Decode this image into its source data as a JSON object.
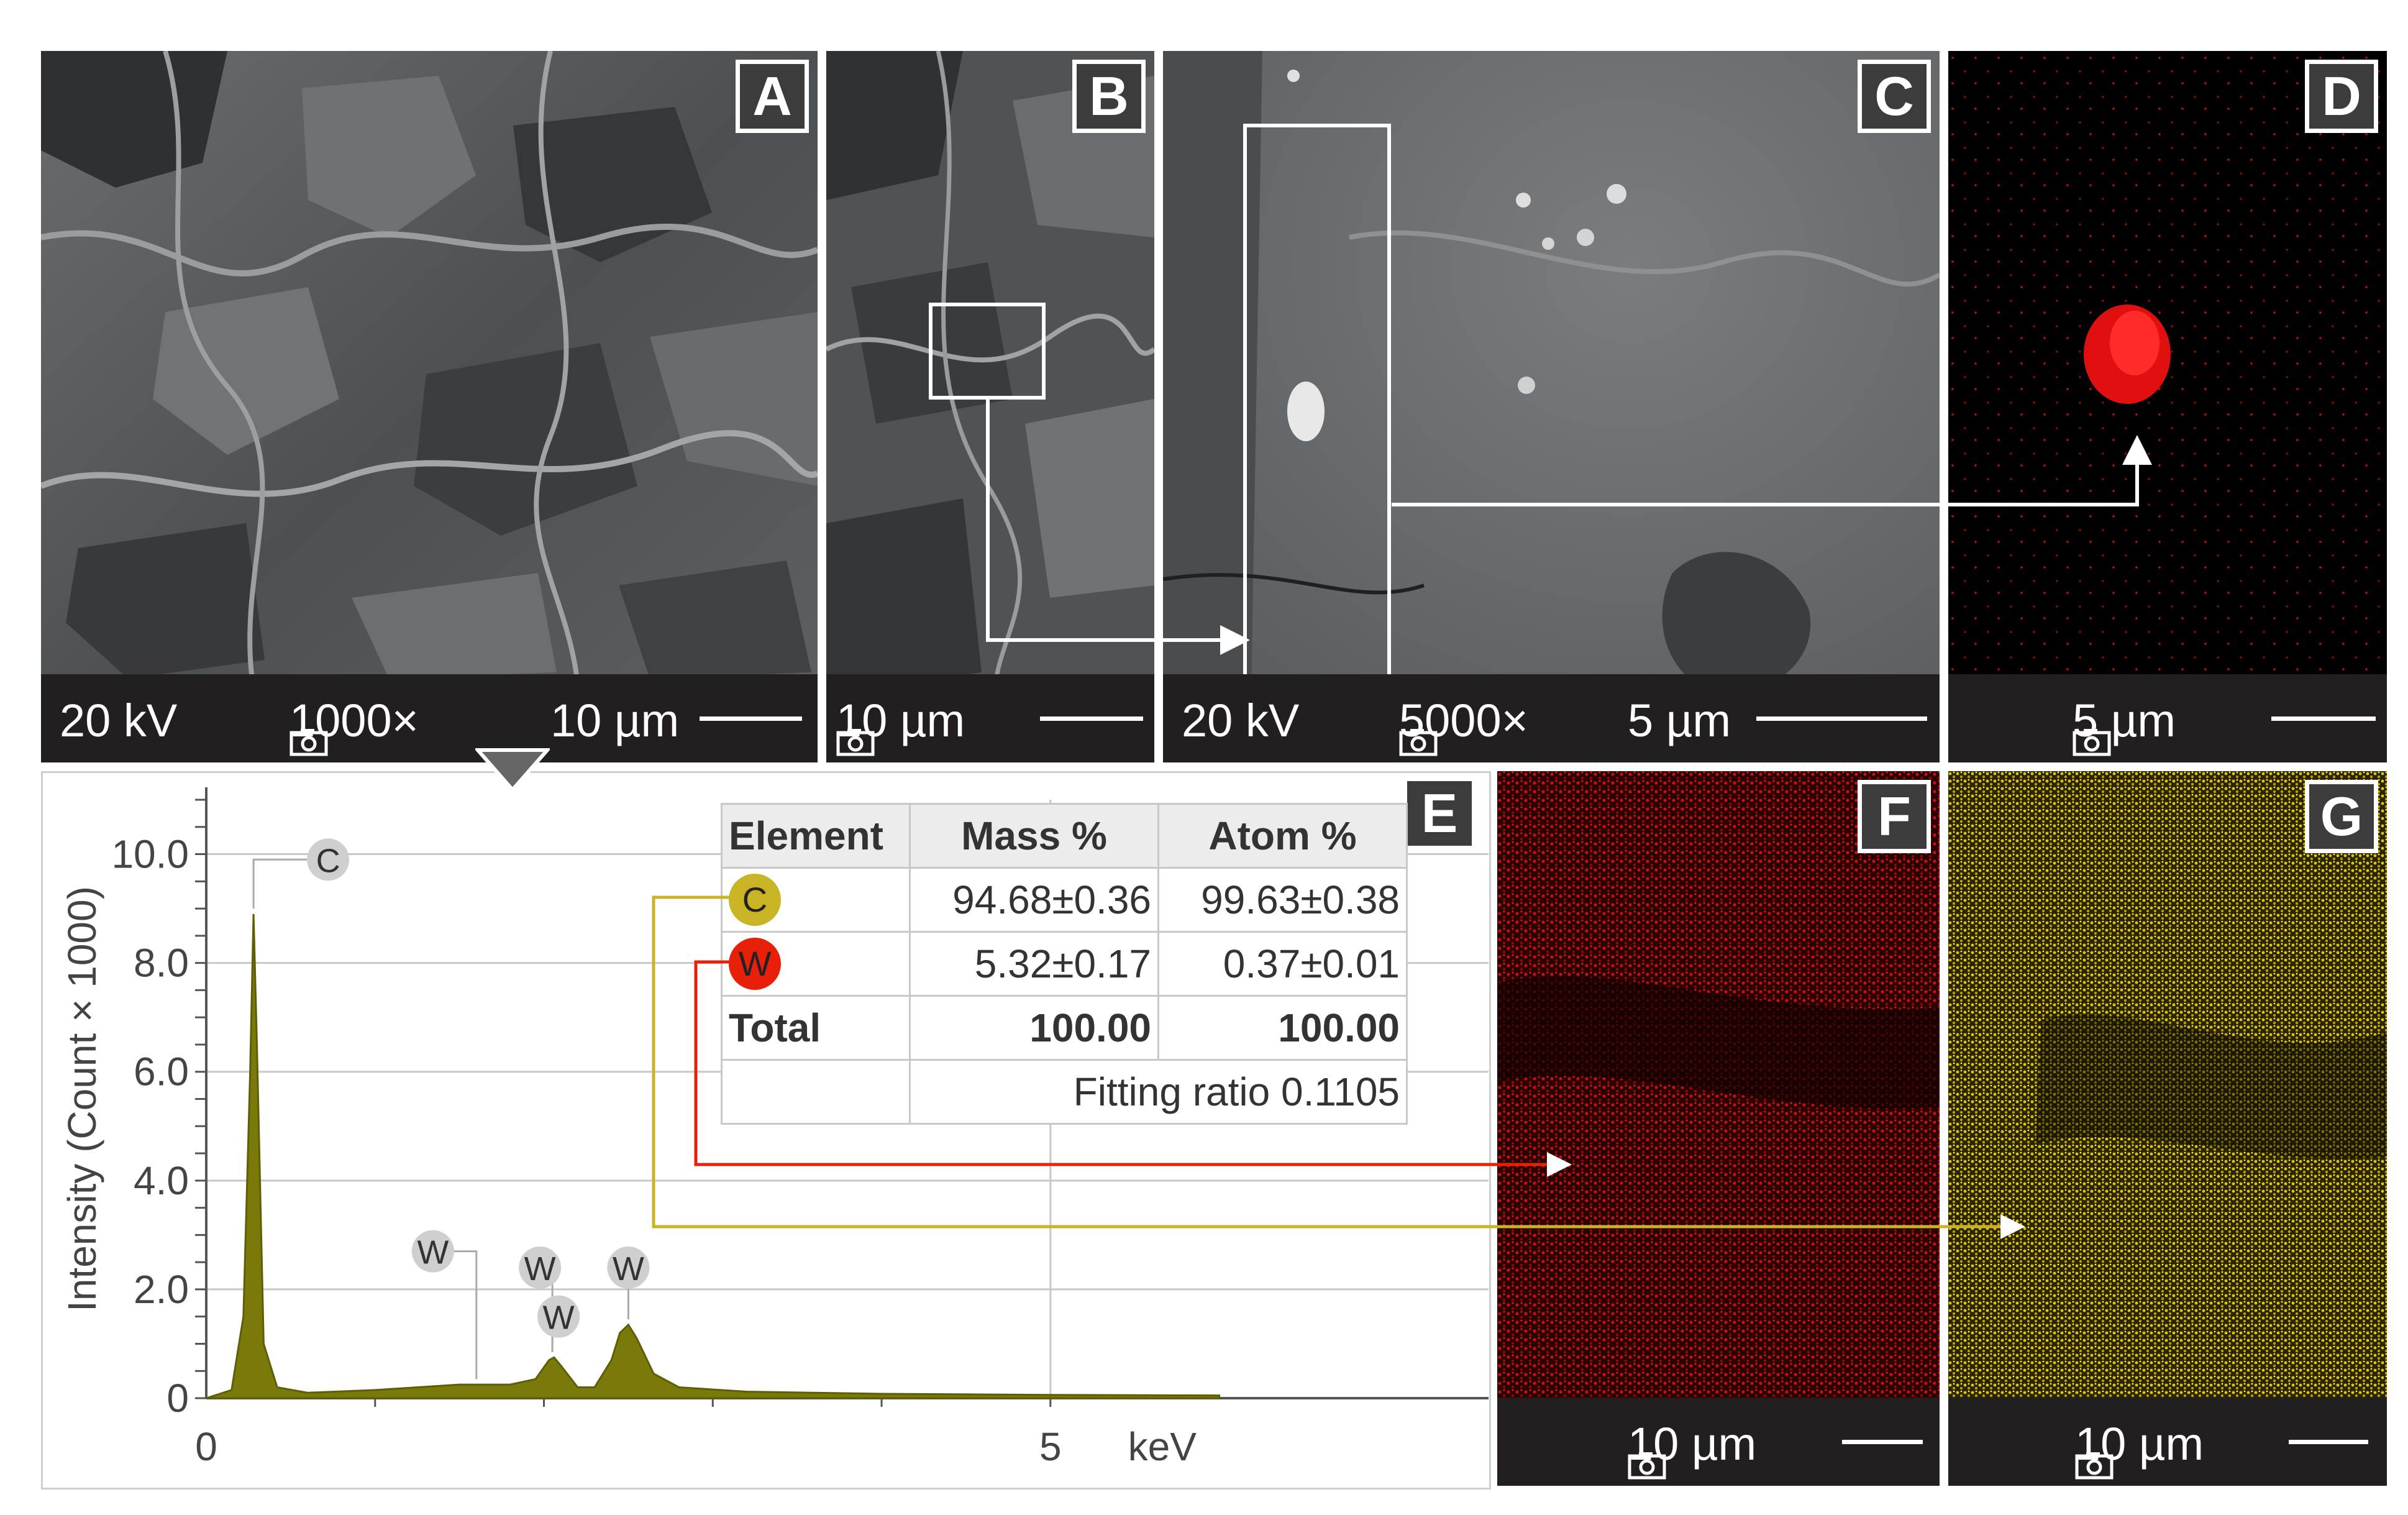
{
  "panels": {
    "A": {
      "letter": "A",
      "voltage": "20 kV",
      "magnification": "1000×",
      "scale": "10 µm"
    },
    "B": {
      "letter": "B",
      "scale": "10 µm"
    },
    "C": {
      "letter": "C",
      "voltage": "20 kV",
      "magnification": "5000×",
      "scale": "5 µm"
    },
    "D": {
      "letter": "D",
      "scale": "5 µm"
    },
    "E": {
      "letter": "E"
    },
    "F": {
      "letter": "F",
      "scale": "10 µm"
    },
    "G": {
      "letter": "G",
      "scale": "10 µm"
    }
  },
  "colors": {
    "sem_gray": "#5a5d61",
    "scale_bar": "#231f20",
    "spectrum_fill": "#7a7a0a",
    "carbon_map": "#ffe000",
    "tungsten_map": "#e01010",
    "carbon_marker": "#c8b424",
    "tungsten_marker": "#e8200a"
  },
  "icons": [
    "camera-icon",
    "down-triangle-icon"
  ],
  "table": {
    "headers": [
      "Element",
      "Mass %",
      "Atom %"
    ],
    "rows": [
      {
        "element": "C",
        "mass": "94.68±0.36",
        "atom": "99.63±0.38"
      },
      {
        "element": "W",
        "mass": "5.32±0.17",
        "atom": "0.37±0.01"
      },
      {
        "element": "Total",
        "mass": "100.00",
        "atom": "100.00"
      }
    ],
    "fitting": "Fitting ratio 0.1105"
  },
  "chart_data": {
    "type": "area",
    "ylabel": "Intensity (Count × 1000)",
    "xlabel": "keV",
    "xlim": [
      0,
      6
    ],
    "ylim": [
      0,
      11
    ],
    "x_ticks": [
      "0",
      "5"
    ],
    "y_ticks": [
      "0",
      "2.0",
      "4.0",
      "6.0",
      "8.0",
      "10.0"
    ],
    "grid": true,
    "peaks": [
      {
        "label": "C",
        "x": 0.28,
        "y": 8.9
      },
      {
        "label": "W",
        "x": 1.6,
        "y": 0.25
      },
      {
        "label": "W",
        "x": 2.05,
        "y": 0.75
      },
      {
        "label": "W",
        "x": 2.05,
        "y": 0.75
      },
      {
        "label": "W",
        "x": 2.5,
        "y": 1.35
      }
    ],
    "series": [
      {
        "x": [
          0,
          0.05,
          0.15,
          0.22,
          0.26,
          0.28,
          0.3,
          0.34,
          0.42,
          0.6,
          1.0,
          1.5,
          1.8,
          1.95,
          2.03,
          2.06,
          2.1,
          2.2,
          2.3,
          2.4,
          2.45,
          2.5,
          2.55,
          2.65,
          2.8,
          3.2,
          4.0,
          5.0,
          6.0
        ],
        "y": [
          0,
          0.05,
          0.15,
          1.5,
          6.0,
          8.9,
          6.5,
          1.0,
          0.2,
          0.1,
          0.15,
          0.25,
          0.25,
          0.35,
          0.7,
          0.75,
          0.6,
          0.2,
          0.2,
          0.7,
          1.2,
          1.35,
          1.1,
          0.45,
          0.2,
          0.12,
          0.08,
          0.06,
          0.05
        ]
      }
    ]
  }
}
